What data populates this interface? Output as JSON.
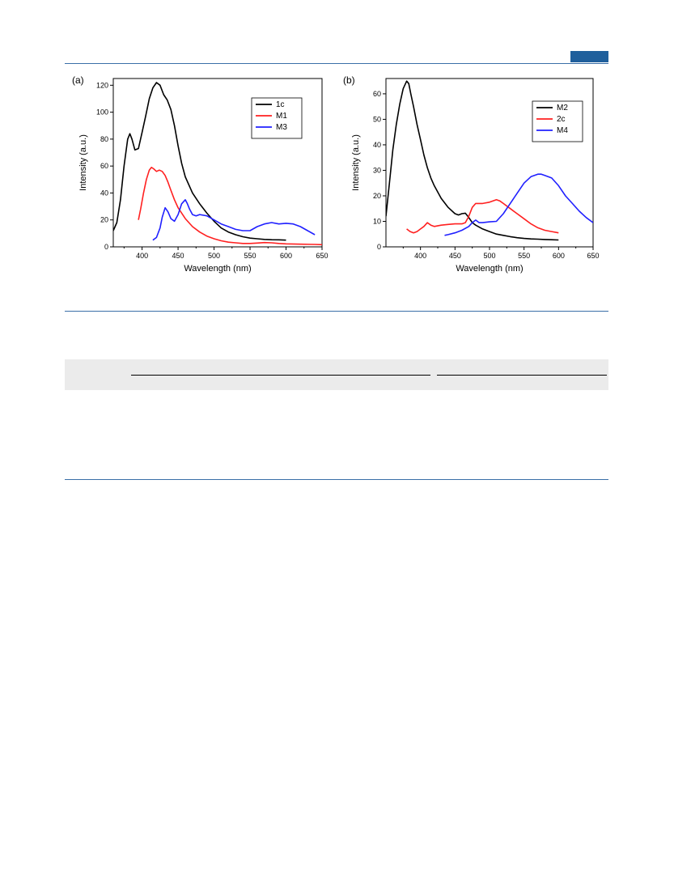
{
  "header": {
    "badge_color": "#1f5f9c",
    "rule_color": "#3a6fa8"
  },
  "table_band_color": "#ebebeb",
  "chart_data": [
    {
      "type": "line",
      "panel_label": "(a)",
      "xlabel": "Wavelength (nm)",
      "ylabel": "Intensity (a.u.)",
      "xlim": [
        360,
        650
      ],
      "ylim": [
        0,
        125
      ],
      "xticks": [
        400,
        450,
        500,
        550,
        600,
        650
      ],
      "yticks": [
        0,
        20,
        40,
        60,
        80,
        100,
        120
      ],
      "grid": false,
      "legend_position": "top-right",
      "series": [
        {
          "name": "1c",
          "color": "#000000",
          "x": [
            360,
            365,
            370,
            375,
            380,
            383,
            386,
            390,
            395,
            400,
            405,
            410,
            415,
            420,
            425,
            430,
            435,
            440,
            445,
            450,
            455,
            460,
            470,
            480,
            490,
            500,
            510,
            520,
            530,
            540,
            550,
            560,
            570,
            580,
            590,
            600
          ],
          "y": [
            12,
            18,
            35,
            60,
            80,
            84,
            80,
            72,
            73,
            85,
            97,
            110,
            118,
            122,
            120,
            113,
            109,
            102,
            90,
            75,
            62,
            52,
            40,
            32,
            25,
            19,
            14,
            11,
            9,
            7.5,
            6.5,
            6,
            5.5,
            5.3,
            5.2,
            5
          ]
        },
        {
          "name": "M1",
          "color": "#ff2020",
          "x": [
            395,
            398,
            402,
            406,
            410,
            413,
            416,
            420,
            424,
            428,
            432,
            436,
            440,
            445,
            450,
            460,
            470,
            480,
            490,
            500,
            510,
            520,
            530,
            540,
            550,
            560,
            570,
            580,
            590,
            600,
            620,
            640,
            650
          ],
          "y": [
            20,
            28,
            40,
            50,
            57,
            59,
            58,
            56,
            57,
            56,
            53,
            48,
            42,
            35,
            29,
            21,
            15,
            11,
            8,
            6,
            4.5,
            3.5,
            3,
            2.5,
            2.5,
            2.8,
            3.2,
            3,
            2.5,
            2.2,
            2,
            1.8,
            1.6
          ]
        },
        {
          "name": "M3",
          "color": "#2020ff",
          "x": [
            415,
            420,
            425,
            428,
            432,
            436,
            440,
            445,
            450,
            455,
            460,
            463,
            466,
            470,
            475,
            480,
            490,
            500,
            510,
            520,
            530,
            540,
            550,
            560,
            570,
            580,
            590,
            600,
            610,
            620,
            630,
            640
          ],
          "y": [
            5,
            7,
            14,
            22,
            29,
            26,
            21,
            19,
            24,
            32,
            35,
            32,
            28,
            24,
            23,
            24,
            23,
            20,
            17,
            15,
            13,
            12,
            12,
            15,
            17,
            18,
            17,
            17.5,
            17,
            15,
            12,
            9
          ]
        }
      ]
    },
    {
      "type": "line",
      "panel_label": "(b)",
      "xlabel": "Wavelength (nm)",
      "ylabel": "Intensity (a.u.)",
      "xlim": [
        350,
        650
      ],
      "ylim": [
        0,
        66
      ],
      "xticks": [
        400,
        450,
        500,
        550,
        600,
        650
      ],
      "yticks": [
        0,
        10,
        20,
        30,
        40,
        50,
        60
      ],
      "grid": false,
      "legend_position": "top-right",
      "series": [
        {
          "name": "M2",
          "color": "#000000",
          "x": [
            350,
            355,
            360,
            365,
            370,
            375,
            380,
            383,
            386,
            390,
            395,
            400,
            405,
            410,
            415,
            420,
            430,
            440,
            450,
            455,
            460,
            465,
            470,
            475,
            480,
            490,
            500,
            510,
            520,
            530,
            540,
            550,
            560,
            570,
            580,
            590,
            600
          ],
          "y": [
            12,
            25,
            38,
            48,
            56,
            62,
            65,
            64,
            60,
            55,
            48,
            42,
            36,
            31,
            27,
            24,
            19,
            15.5,
            13,
            12.5,
            13,
            13.2,
            11.5,
            9.5,
            8.5,
            7,
            6,
            5,
            4.5,
            4,
            3.6,
            3.3,
            3.1,
            3,
            2.9,
            2.8,
            2.7
          ]
        },
        {
          "name": "2c",
          "color": "#ff2020",
          "x": [
            380,
            385,
            390,
            395,
            400,
            405,
            410,
            415,
            420,
            430,
            440,
            450,
            460,
            465,
            470,
            475,
            480,
            490,
            500,
            510,
            515,
            520,
            530,
            540,
            550,
            560,
            570,
            580,
            590,
            600
          ],
          "y": [
            7,
            6,
            5.5,
            6,
            7,
            8,
            9.5,
            8.5,
            8,
            8.5,
            8.8,
            9,
            9,
            9.5,
            12,
            15.5,
            17,
            17,
            17.5,
            18.5,
            18,
            17,
            15,
            13,
            11,
            9,
            7.5,
            6.5,
            6,
            5.5
          ]
        },
        {
          "name": "M4",
          "color": "#2020ff",
          "x": [
            435,
            440,
            450,
            460,
            470,
            475,
            480,
            485,
            490,
            500,
            510,
            520,
            530,
            540,
            550,
            560,
            570,
            575,
            580,
            590,
            600,
            610,
            620,
            630,
            640,
            650
          ],
          "y": [
            4.5,
            4.8,
            5.5,
            6.5,
            8,
            9.5,
            10.5,
            9.5,
            9.5,
            9.8,
            10,
            13,
            17,
            21,
            25,
            27.5,
            28.5,
            28.5,
            28,
            27,
            24,
            20,
            17,
            14,
            11.5,
            9.5
          ]
        }
      ]
    }
  ]
}
